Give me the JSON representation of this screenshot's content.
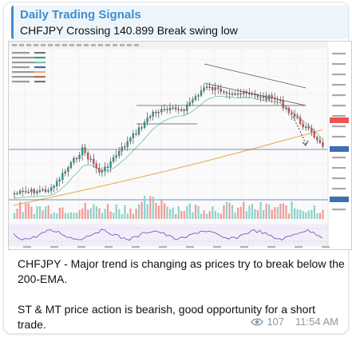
{
  "message": {
    "channel_name": "Daily Trading Signals",
    "reply_text": "CHFJPY Crossing 140.899 Break swing low",
    "caption": [
      "CHFJPY - Major trend is changing as prices try to break below the 200-EMA.",
      "ST & MT price action is bearish, good opportunity for a short trade."
    ],
    "views": "107",
    "time": "11:54 AM"
  },
  "chart_image": {
    "icon_name": "candlestick-chart-screenshot",
    "colors": {
      "up_candle": "#26a69a",
      "down_candle": "#ef5350",
      "ema_200": "#f0b060",
      "ema_fast": "#7fc6a4",
      "trendline": "#555555",
      "horizontal_level": "#3e6fb0",
      "oscillator": "#7e57c2"
    }
  },
  "colors": {
    "accent": "#3e8ed0",
    "meta_text": "#8a9aa5"
  }
}
